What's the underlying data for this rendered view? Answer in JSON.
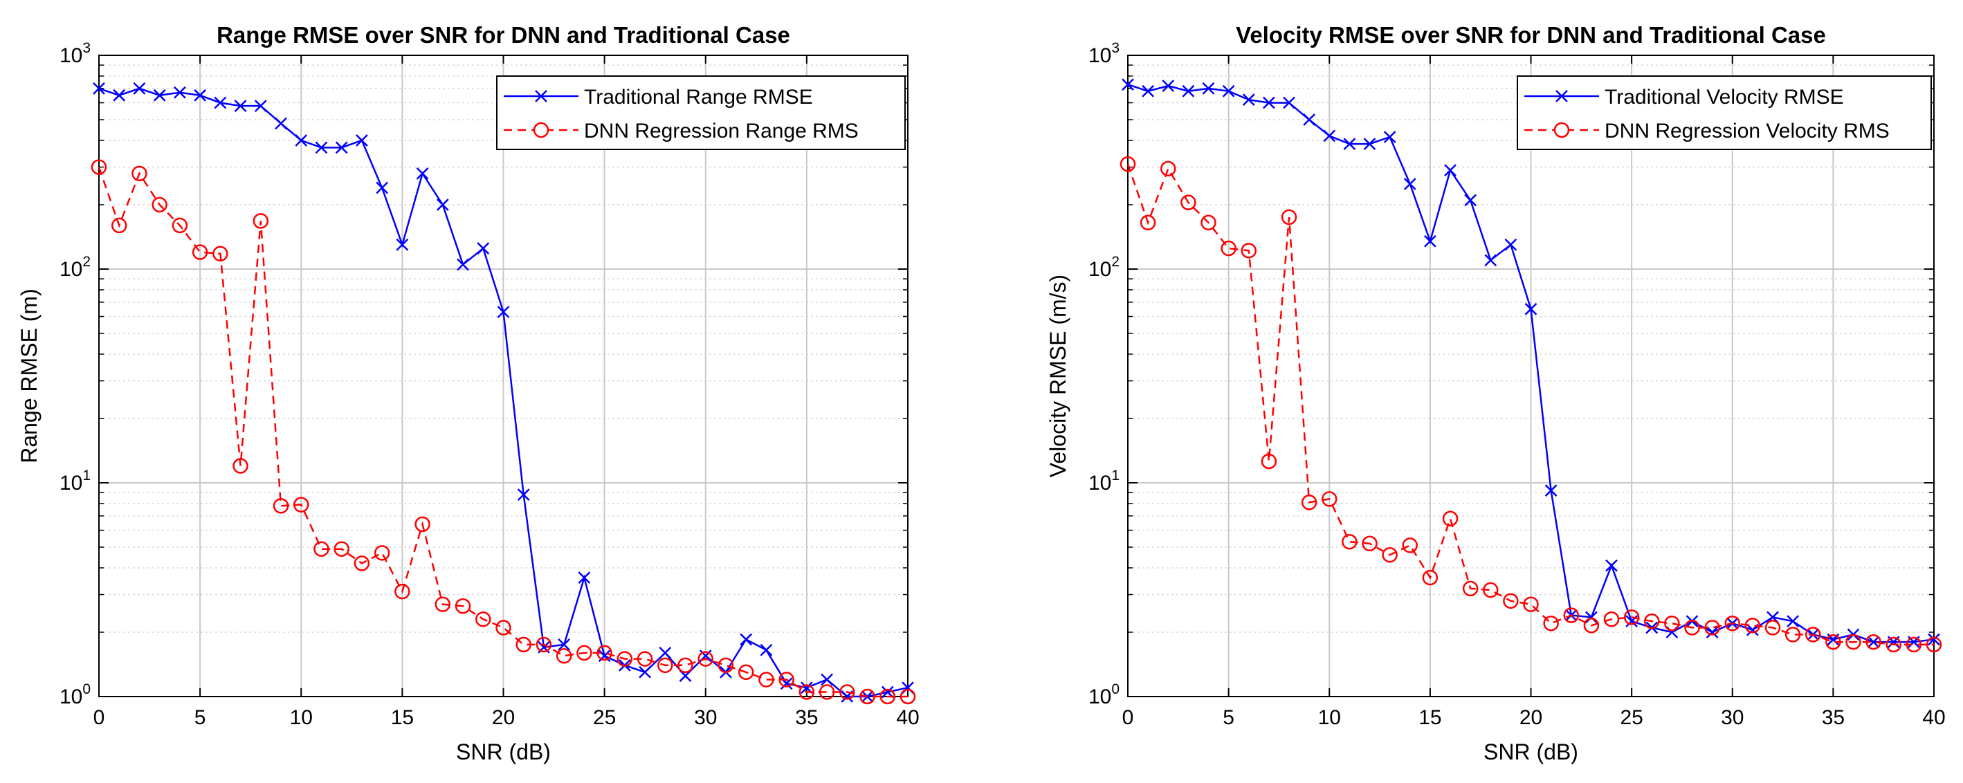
{
  "chart_data": [
    {
      "type": "line",
      "title": "Range RMSE over SNR for DNN and Traditional Case",
      "xlabel": "SNR (dB)",
      "ylabel": "Range RMSE (m)",
      "xlim": [
        0,
        40
      ],
      "ylim": [
        1,
        1000
      ],
      "yscale": "log",
      "grid": true,
      "legend_position": "top-right",
      "x_ticks": [
        "0",
        "5",
        "10",
        "15",
        "20",
        "25",
        "30",
        "35",
        "40"
      ],
      "x": [
        0,
        1,
        2,
        3,
        4,
        5,
        6,
        7,
        8,
        9,
        10,
        11,
        12,
        13,
        14,
        15,
        16,
        17,
        18,
        19,
        20,
        21,
        22,
        23,
        24,
        25,
        26,
        27,
        28,
        29,
        30,
        31,
        32,
        33,
        34,
        35,
        36,
        37,
        38,
        39,
        40
      ],
      "series": [
        {
          "name": "Traditional Range RMSE",
          "color": "#0000FF",
          "marker": "x",
          "line": "solid",
          "values": [
            700,
            650,
            700,
            650,
            670,
            650,
            600,
            580,
            580,
            480,
            400,
            370,
            370,
            400,
            240,
            130,
            280,
            200,
            105,
            125,
            63,
            8.8,
            1.7,
            1.75,
            3.6,
            1.55,
            1.4,
            1.3,
            1.6,
            1.25,
            1.55,
            1.3,
            1.85,
            1.65,
            1.15,
            1.1,
            1.2,
            1.0,
            1.0,
            1.05,
            1.1
          ]
        },
        {
          "name": "DNN Regression Range RMS",
          "color": "#FF0000",
          "marker": "o",
          "line": "dashed",
          "values": [
            300,
            160,
            280,
            200,
            160,
            120,
            118,
            12,
            168,
            7.8,
            7.9,
            4.9,
            4.9,
            4.2,
            4.7,
            3.1,
            6.4,
            2.7,
            2.65,
            2.3,
            2.1,
            1.75,
            1.75,
            1.55,
            1.6,
            1.6,
            1.5,
            1.5,
            1.4,
            1.4,
            1.5,
            1.4,
            1.3,
            1.2,
            1.2,
            1.05,
            1.05,
            1.05,
            1.0,
            1.0,
            1.0
          ]
        }
      ]
    },
    {
      "type": "line",
      "title": "Velocity RMSE over SNR for DNN and Traditional Case",
      "xlabel": "SNR (dB)",
      "ylabel": "Velocity RMSE (m/s)",
      "xlim": [
        0,
        40
      ],
      "ylim": [
        1,
        1000
      ],
      "yscale": "log",
      "grid": true,
      "legend_position": "top-right",
      "x_ticks": [
        "0",
        "5",
        "10",
        "15",
        "20",
        "25",
        "30",
        "35",
        "40"
      ],
      "x": [
        0,
        1,
        2,
        3,
        4,
        5,
        6,
        7,
        8,
        9,
        10,
        11,
        12,
        13,
        14,
        15,
        16,
        17,
        18,
        19,
        20,
        21,
        22,
        23,
        24,
        25,
        26,
        27,
        28,
        29,
        30,
        31,
        32,
        33,
        34,
        35,
        36,
        37,
        38,
        39,
        40
      ],
      "series": [
        {
          "name": "Traditional Velocity RMSE",
          "color": "#0000FF",
          "marker": "x",
          "line": "solid",
          "values": [
            730,
            680,
            720,
            680,
            700,
            680,
            620,
            600,
            600,
            500,
            420,
            385,
            385,
            415,
            250,
            135,
            290,
            210,
            110,
            130,
            65,
            9.2,
            2.4,
            2.35,
            4.1,
            2.25,
            2.1,
            2.0,
            2.25,
            2.0,
            2.2,
            2.05,
            2.35,
            2.25,
            1.95,
            1.85,
            1.95,
            1.8,
            1.8,
            1.8,
            1.85
          ]
        },
        {
          "name": "DNN Regression Velocity RMS",
          "color": "#FF0000",
          "marker": "o",
          "line": "dashed",
          "values": [
            310,
            165,
            295,
            205,
            165,
            125,
            122,
            12.6,
            175,
            8.1,
            8.4,
            5.3,
            5.2,
            4.6,
            5.1,
            3.6,
            6.8,
            3.2,
            3.15,
            2.8,
            2.7,
            2.2,
            2.4,
            2.15,
            2.3,
            2.35,
            2.25,
            2.2,
            2.1,
            2.1,
            2.2,
            2.15,
            2.1,
            1.95,
            1.95,
            1.8,
            1.8,
            1.8,
            1.75,
            1.75,
            1.75
          ]
        }
      ]
    }
  ]
}
